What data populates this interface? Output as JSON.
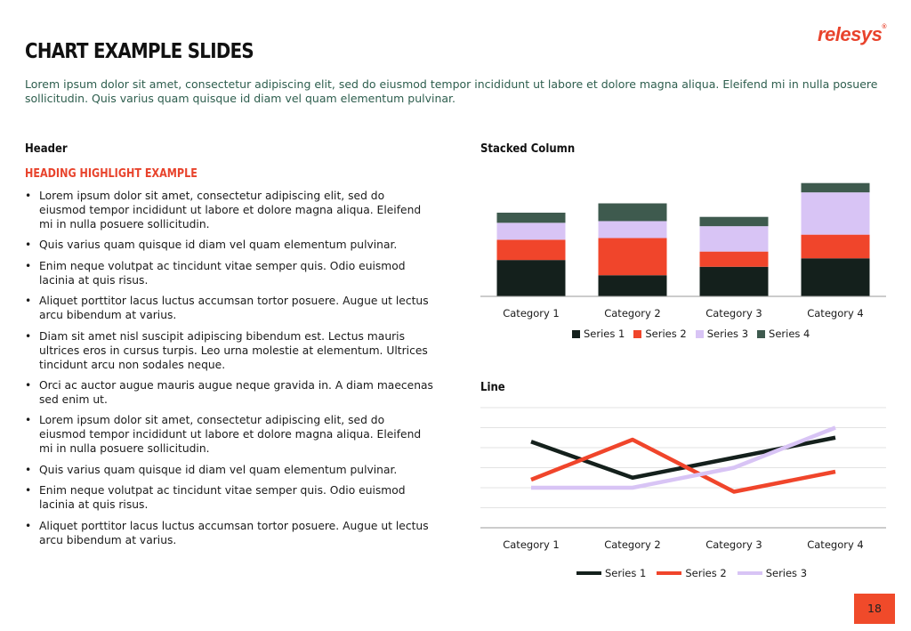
{
  "brand": {
    "logo_text": "relesys",
    "logo_mark": "®"
  },
  "slide": {
    "title": "CHART EXAMPLE SLIDES",
    "intro": "Lorem ipsum dolor sit amet, consectetur adipiscing elit, sed do eiusmod tempor incididunt ut labore et dolore magna aliqua. Eleifend mi in nulla posuere sollicitudin. Quis varius quam quisque id diam vel quam elementum pulvinar.",
    "page_number": "18"
  },
  "left": {
    "header": "Header",
    "highlight": "HEADING HIGHLIGHT EXAMPLE",
    "bullets": [
      "Lorem ipsum dolor sit amet, consectetur adipiscing elit, sed do eiusmod tempor incididunt ut labore et dolore magna aliqua. Eleifend mi in nulla posuere sollicitudin.",
      "Quis varius quam quisque id diam vel quam elementum pulvinar.",
      "Enim neque volutpat ac tincidunt vitae semper quis. Odio euismod lacinia at quis risus.",
      "Aliquet porttitor lacus luctus accumsan tortor posuere. Augue ut lectus arcu bibendum at varius.",
      "Diam sit amet nisl suscipit adipiscing bibendum est. Lectus mauris ultrices eros in cursus turpis. Leo urna molestie at elementum. Ultrices tincidunt arcu non sodales neque.",
      "Orci ac auctor augue mauris augue neque gravida in. A diam maecenas sed enim ut.",
      "Lorem ipsum dolor sit amet, consectetur adipiscing elit, sed do eiusmod tempor incididunt ut labore et dolore magna aliqua. Eleifend mi in nulla posuere sollicitudin.",
      "Quis varius quam quisque id diam vel quam elementum pulvinar.",
      "Enim neque volutpat ac tincidunt vitae semper quis. Odio euismod lacinia at quis risus.",
      "Aliquet porttitor lacus luctus accumsan tortor posuere. Augue ut lectus arcu bibendum at varius."
    ]
  },
  "colors": {
    "accent": "#e8432c",
    "series1": "#14201c",
    "series2": "#f0452b",
    "series3": "#d8c4f5",
    "series4": "#3e5a4e",
    "intro_text": "#2e5e4e"
  },
  "chart_data": [
    {
      "type": "bar",
      "stacked": true,
      "title": "Stacked Column",
      "categories": [
        "Category 1",
        "Category 2",
        "Category 3",
        "Category 4"
      ],
      "series": [
        {
          "name": "Series 1",
          "values": [
            4.3,
            2.5,
            3.5,
            4.5
          ]
        },
        {
          "name": "Series 2",
          "values": [
            2.4,
            4.4,
            1.8,
            2.8
          ]
        },
        {
          "name": "Series 3",
          "values": [
            2.0,
            2.0,
            3.0,
            5.0
          ]
        },
        {
          "name": "Series 4",
          "values": [
            1.2,
            2.1,
            1.1,
            1.1
          ]
        }
      ],
      "ylim": [
        0,
        14
      ],
      "grid": false,
      "legend": "bottom"
    },
    {
      "type": "line",
      "title": "Line",
      "categories": [
        "Category 1",
        "Category 2",
        "Category 3",
        "Category 4"
      ],
      "series": [
        {
          "name": "Series 1",
          "values": [
            4.3,
            2.5,
            3.5,
            4.5
          ]
        },
        {
          "name": "Series 2",
          "values": [
            2.4,
            4.4,
            1.8,
            2.8
          ]
        },
        {
          "name": "Series 3",
          "values": [
            2.0,
            2.0,
            3.0,
            5.0
          ]
        }
      ],
      "ylim": [
        0,
        6
      ],
      "grid": true,
      "legend": "bottom"
    }
  ]
}
